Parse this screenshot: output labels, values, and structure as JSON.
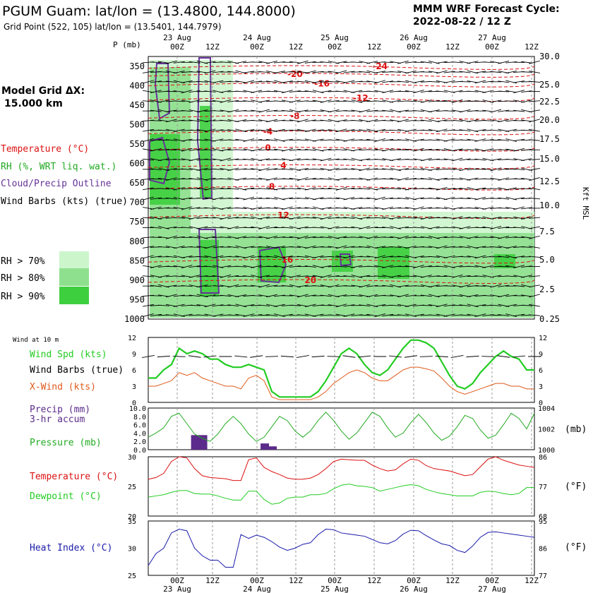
{
  "header": {
    "title": "PGUM Guam:  lat/lon = (13.4800, 144.8000)",
    "subtitle": "Grid Point (522, 105) lat/lon = (13.5401, 144.7979)",
    "cycle_line1": "MMM WRF Forecast Cycle:",
    "cycle_line2": "2022-08-22 / 12  Z"
  },
  "left_panel": {
    "grid_label": "Model Grid ΔX:",
    "grid_value": "15.000 km",
    "legend": [
      {
        "text": "Temperature (°C)",
        "color": "#dd1111"
      },
      {
        "text": "RH (%, WRT liq. wat.)",
        "color": "#22aa22"
      },
      {
        "text": "Cloud/Precip Outline",
        "color": "#663399"
      },
      {
        "text": "Wind Barbs (kts) (true)",
        "color": "#000000"
      }
    ],
    "rh_legend": [
      {
        "text": "RH > 70%",
        "color": "#ccf5cc"
      },
      {
        "text": "RH > 80%",
        "color": "#8ee08e"
      },
      {
        "text": "RH > 90%",
        "color": "#3ecf3e"
      }
    ]
  },
  "colors": {
    "temp": "#dd1111",
    "rh70": "#ccf5cc",
    "rh80": "#8ee08e",
    "rh90": "#3ecf3e",
    "cloud": "#663399",
    "wind_speed": "#22cc22",
    "xwind": "#e05a1a",
    "precip": "#5b2a8a",
    "pressure": "#22aa22",
    "dewpoint": "#22cc22",
    "heat_index": "#1a1aaa"
  },
  "time_axis": {
    "tick_labels": [
      "00Z",
      "12Z",
      "00Z",
      "12Z",
      "00Z",
      "12Z",
      "00Z",
      "12Z",
      "00Z",
      "12Z"
    ],
    "date_labels": [
      "23 Aug",
      "24 Aug",
      "25 Aug",
      "26 Aug",
      "27 Aug"
    ]
  },
  "chart_data": [
    {
      "type": "heatmap",
      "name": "cross-section",
      "ylabel_left": "P (mb)",
      "ylabel_right": "Kft MSL",
      "pressure_levels": [
        350,
        400,
        450,
        500,
        550,
        600,
        650,
        700,
        750,
        800,
        850,
        900,
        950,
        1000
      ],
      "height_labels": [
        "30.0",
        "25.0",
        "22.5",
        "20.0",
        "17.5",
        "15.0",
        "12.5",
        "10.0",
        "7.5",
        "5.0",
        "2.5",
        "0.25"
      ],
      "temp_contours": [
        {
          "label": "-24",
          "x_frac": 0.6,
          "p": 350
        },
        {
          "label": "-20",
          "x_frac": 0.38,
          "p": 370
        },
        {
          "label": "-16",
          "x_frac": 0.45,
          "p": 395
        },
        {
          "label": "-12",
          "x_frac": 0.55,
          "p": 432
        },
        {
          "label": "-8",
          "x_frac": 0.38,
          "p": 478
        },
        {
          "label": "-4",
          "x_frac": 0.31,
          "p": 518
        },
        {
          "label": "0",
          "x_frac": 0.31,
          "p": 560
        },
        {
          "label": "4",
          "x_frac": 0.35,
          "p": 605
        },
        {
          "label": "8",
          "x_frac": 0.32,
          "p": 660
        },
        {
          "label": "12",
          "x_frac": 0.35,
          "p": 733
        },
        {
          "label": "16",
          "x_frac": 0.36,
          "p": 848
        },
        {
          "label": "20",
          "x_frac": 0.42,
          "p": 900
        }
      ]
    },
    {
      "type": "line",
      "name": "wind",
      "title": "Wind at 10 m",
      "labels": [
        "Wind Spd (kts)",
        "Wind Barbs (true)",
        "X-Wind (kts)"
      ],
      "yticks": [
        "0",
        "3",
        "6",
        "9",
        "12"
      ],
      "ylim": [
        0,
        12
      ],
      "wind_speed": [
        4.5,
        4.5,
        6,
        7,
        10,
        9,
        9.5,
        9,
        8,
        8,
        7,
        6.5,
        6.5,
        7,
        6.5,
        6,
        2,
        1,
        1,
        1,
        1,
        1,
        2,
        4,
        6.5,
        9,
        10,
        9,
        7,
        5.5,
        5,
        6,
        8,
        10,
        11.5,
        11.5,
        11,
        10,
        7.5,
        5,
        3,
        2.5,
        3.5,
        5.5,
        7,
        8.5,
        9.5,
        8.5,
        8,
        6,
        6
      ],
      "xwind": [
        3,
        3,
        3.5,
        4,
        5.5,
        5,
        5.5,
        4.5,
        4,
        3.5,
        3,
        3,
        2.5,
        4.5,
        5,
        4,
        1,
        0.5,
        0.5,
        0.5,
        0.5,
        0.5,
        1,
        2,
        3.5,
        4.5,
        5.5,
        6,
        5.5,
        4.5,
        4,
        4,
        5,
        6,
        6.5,
        6.5,
        6.2,
        5.8,
        4.5,
        3,
        2,
        1.5,
        2,
        2.5,
        3,
        3.5,
        3.5,
        3,
        3,
        2.5,
        2.5
      ]
    },
    {
      "type": "bar",
      "name": "precip-pressure",
      "labels": [
        "Precip (mm)",
        "3-hr accum",
        "Pressure (mb)"
      ],
      "yticks_left": [
        "0.0",
        "2.0",
        "4.0",
        "6.0",
        "8.0",
        "10.0"
      ],
      "yticks_right": [
        "1000",
        "1002",
        "1004"
      ],
      "ylabel_right": "(mb)",
      "precip": [
        0,
        0,
        0,
        0,
        0,
        0,
        3.5,
        3.5,
        0,
        0,
        0,
        0,
        0,
        0,
        0,
        1.5,
        0.8,
        0,
        0,
        0,
        0,
        0,
        0,
        0,
        0,
        0,
        0,
        0,
        0,
        0,
        0,
        0,
        0,
        0,
        0,
        0,
        0,
        0,
        0,
        0,
        0,
        0,
        0,
        0,
        0,
        0,
        0,
        0,
        0,
        0,
        0
      ],
      "pressure": [
        1001.2,
        1001.6,
        1002.1,
        1003.2,
        1003.5,
        1002.5,
        1001.5,
        1001.1,
        1000.8,
        1001.5,
        1002.5,
        1003.2,
        1002.5,
        1001.5,
        1000.8,
        1001.2,
        1002.2,
        1003.2,
        1002.8,
        1001.8,
        1001.2,
        1001.8,
        1002.8,
        1003.6,
        1002.8,
        1001.8,
        1001,
        1001.6,
        1002.6,
        1003.6,
        1003.2,
        1002.1,
        1001.2,
        1001.6,
        1002.6,
        1003.4,
        1002.6,
        1001.6,
        1000.9,
        1001.3,
        1002.2,
        1003.3,
        1003,
        1001.9,
        1001.1,
        1001.4,
        1002.4,
        1003.5,
        1003,
        1002,
        1003.5
      ]
    },
    {
      "type": "line",
      "name": "temperature-dewpoint",
      "labels": [
        "Temperature (°C)",
        "Dewpoint (°C)"
      ],
      "yticks_left": [
        "20",
        "25",
        "30"
      ],
      "yticks_right": [
        "68",
        "77",
        "86"
      ],
      "ylabel_right": "(°F)",
      "ylim": [
        20,
        30
      ],
      "temperature": [
        26.2,
        26.5,
        27.2,
        29.2,
        30,
        29.8,
        28,
        26.8,
        26.5,
        26.4,
        26.3,
        26,
        26,
        29.5,
        29.8,
        28.2,
        27.5,
        27,
        26.4,
        26.2,
        26.2,
        26.4,
        27,
        28,
        29.2,
        29.6,
        29.5,
        29.4,
        29.4,
        28.6,
        28,
        27.6,
        27.8,
        28.8,
        29.6,
        29.4,
        28.5,
        28,
        27.8,
        27.6,
        27.2,
        26.8,
        27,
        28.3,
        29.6,
        30,
        29.4,
        29,
        28.6,
        28.4,
        28.2
      ],
      "dewpoint": [
        23.2,
        23.4,
        23.6,
        24,
        24.3,
        24.3,
        23.8,
        23.7,
        23.7,
        23.4,
        23,
        22.7,
        22.7,
        24.2,
        24.2,
        22.8,
        22,
        22.2,
        23,
        23.2,
        23.2,
        23.6,
        23.6,
        23.8,
        24.6,
        25.2,
        25.4,
        25.1,
        25,
        24.8,
        24.2,
        24.5,
        24.8,
        25.1,
        25.3,
        25.1,
        24.5,
        24.1,
        23.8,
        23.6,
        23.4,
        23.4,
        23.4,
        24,
        24.2,
        24.1,
        23.8,
        23.6,
        23.8,
        24.8,
        24.8
      ]
    },
    {
      "type": "line",
      "name": "heat-index",
      "labels": [
        "Heat Index (°C)"
      ],
      "yticks_left": [
        "25",
        "30",
        "35"
      ],
      "yticks_right": [
        "77",
        "86",
        "95"
      ],
      "ylabel_right": "(°F)",
      "ylim": [
        25,
        35
      ],
      "heat_index": [
        26.8,
        29,
        30,
        32.8,
        33.5,
        33.2,
        30,
        28.6,
        27.8,
        27.8,
        26.5,
        26.5,
        32.5,
        31.8,
        32.4,
        32,
        31.2,
        30.2,
        29.6,
        30,
        30.7,
        31,
        32.5,
        33.5,
        33.4,
        32.8,
        32.6,
        32.4,
        32.2,
        31.6,
        31,
        30.8,
        31.4,
        32.6,
        33.3,
        33.2,
        32.3,
        31.5,
        30.8,
        30.5,
        29.6,
        29.2,
        30.4,
        32,
        32.9,
        33,
        32.8,
        32.6,
        32.4,
        32.2,
        32
      ]
    }
  ]
}
